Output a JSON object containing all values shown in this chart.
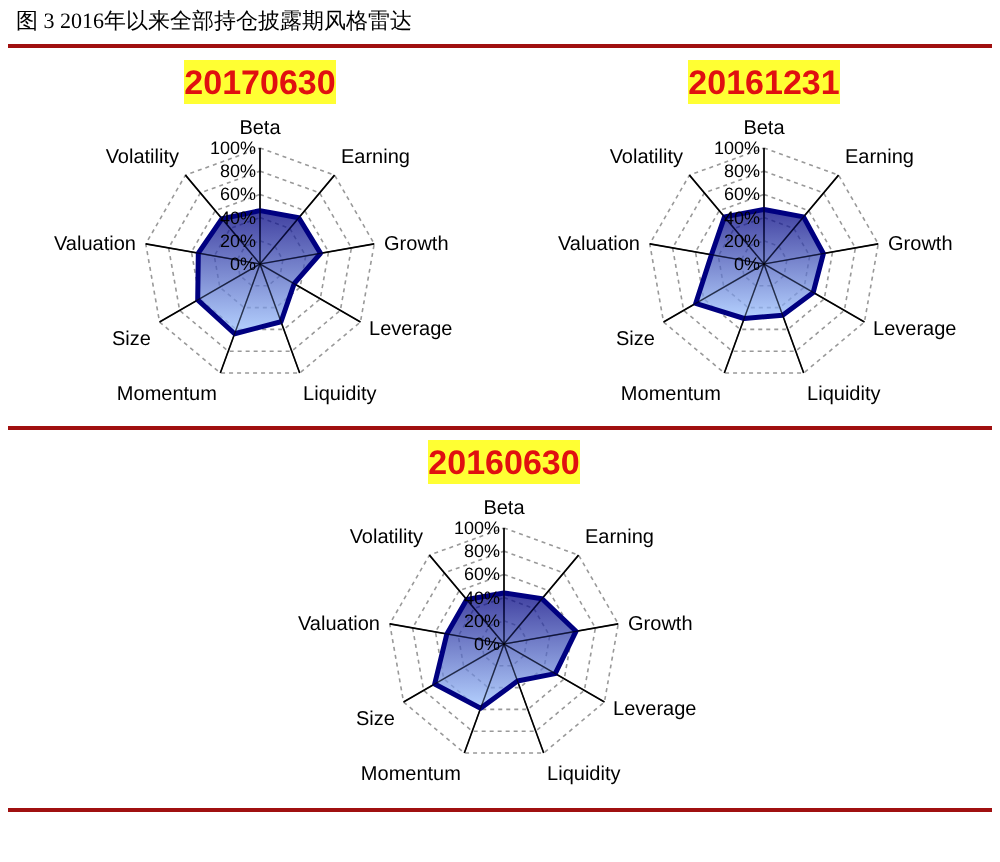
{
  "chart_data": [
    {
      "type": "radar",
      "title": "20170630",
      "annotations": [
        "图 3 2016年以来全部持仓披露期风格雷达"
      ],
      "categories": [
        "Beta",
        "Earning",
        "Growth",
        "Leverage",
        "Liquidity",
        "Momentum",
        "Size",
        "Valuation",
        "Volatility"
      ],
      "ylim": [
        0,
        100
      ],
      "yticks": [
        {
          "value": 0,
          "label": "0%"
        },
        {
          "value": 20,
          "label": "20%"
        },
        {
          "value": 40,
          "label": "40%"
        },
        {
          "value": 60,
          "label": "60%"
        },
        {
          "value": 80,
          "label": "80%"
        },
        {
          "value": 100,
          "label": "100%"
        }
      ],
      "grid": true,
      "series": [
        {
          "color": "#000080",
          "values": [
            46,
            52,
            53,
            34,
            53,
            64,
            62,
            54,
            51
          ]
        }
      ]
    },
    {
      "type": "radar",
      "title": "20161231",
      "categories": [
        "Beta",
        "Earning",
        "Growth",
        "Leverage",
        "Liquidity",
        "Momentum",
        "Size",
        "Valuation",
        "Volatility"
      ],
      "ylim": [
        0,
        100
      ],
      "yticks": [
        {
          "value": 0,
          "label": "0%"
        },
        {
          "value": 20,
          "label": "20%"
        },
        {
          "value": 40,
          "label": "40%"
        },
        {
          "value": 60,
          "label": "60%"
        },
        {
          "value": 80,
          "label": "80%"
        },
        {
          "value": 100,
          "label": "100%"
        }
      ],
      "grid": true,
      "series": [
        {
          "color": "#000080",
          "values": [
            47,
            53,
            52,
            49,
            47,
            50,
            68,
            46,
            53
          ]
        }
      ]
    },
    {
      "type": "radar",
      "title": "20160630",
      "categories": [
        "Beta",
        "Earning",
        "Growth",
        "Leverage",
        "Liquidity",
        "Momentum",
        "Size",
        "Valuation",
        "Volatility"
      ],
      "ylim": [
        0,
        100
      ],
      "yticks": [
        {
          "value": 0,
          "label": "0%"
        },
        {
          "value": 20,
          "label": "20%"
        },
        {
          "value": 40,
          "label": "40%"
        },
        {
          "value": 60,
          "label": "60%"
        },
        {
          "value": 80,
          "label": "80%"
        },
        {
          "value": 100,
          "label": "100%"
        }
      ],
      "grid": true,
      "series": [
        {
          "color": "#000080",
          "values": [
            44,
            51,
            63,
            51,
            34,
            59,
            69,
            50,
            50
          ]
        }
      ]
    }
  ]
}
